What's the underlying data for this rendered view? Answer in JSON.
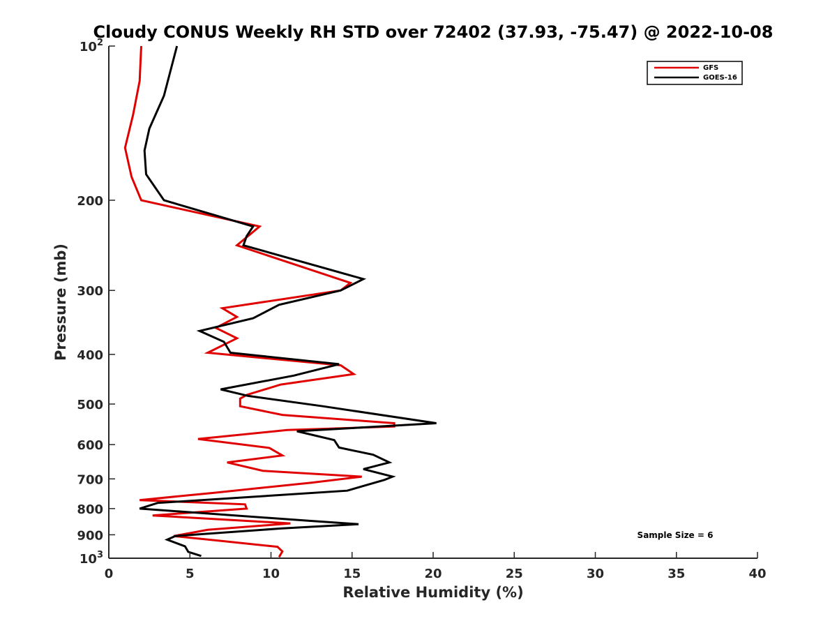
{
  "chart_data": {
    "type": "line",
    "title": "Cloudy CONUS Weekly RH STD over 72402 (37.93, -75.47) @ 2022-10-08",
    "xlabel": "Relative Humidity (%)",
    "ylabel": "Pressure (mb)",
    "xlim": [
      0,
      40
    ],
    "ylim": [
      100,
      1000
    ],
    "y_scale": "log",
    "y_reversed": true,
    "x_ticks": [
      0,
      5,
      10,
      15,
      20,
      25,
      30,
      35,
      40
    ],
    "y_ticks": [
      {
        "value": 100,
        "label": "10",
        "exp": "2"
      },
      {
        "value": 200,
        "label": "200"
      },
      {
        "value": 300,
        "label": "300"
      },
      {
        "value": 400,
        "label": "400"
      },
      {
        "value": 500,
        "label": "500"
      },
      {
        "value": 600,
        "label": "600"
      },
      {
        "value": 700,
        "label": "700"
      },
      {
        "value": 800,
        "label": "800"
      },
      {
        "value": 900,
        "label": "900"
      },
      {
        "value": 1000,
        "label": "10",
        "exp": "3"
      }
    ],
    "grid": false,
    "legend_position": "top-right",
    "series": [
      {
        "name": "GFS",
        "color": "#e00000",
        "points": [
          [
            2.0,
            100
          ],
          [
            1.9,
            117
          ],
          [
            1.5,
            136
          ],
          [
            1.0,
            158
          ],
          [
            1.4,
            180
          ],
          [
            2.0,
            200
          ],
          [
            9.3,
            225
          ],
          [
            7.9,
            245
          ],
          [
            14.9,
            290
          ],
          [
            14.3,
            300
          ],
          [
            7.0,
            325
          ],
          [
            7.9,
            338
          ],
          [
            6.6,
            355
          ],
          [
            7.9,
            372
          ],
          [
            6.1,
            397
          ],
          [
            14.3,
            420
          ],
          [
            15.1,
            437
          ],
          [
            10.6,
            458
          ],
          [
            8.5,
            480
          ],
          [
            8.1,
            488
          ],
          [
            8.1,
            505
          ],
          [
            10.7,
            525
          ],
          [
            17.6,
            545
          ],
          [
            17.6,
            553
          ],
          [
            11.0,
            562
          ],
          [
            5.5,
            585
          ],
          [
            9.9,
            609
          ],
          [
            10.7,
            630
          ],
          [
            7.3,
            650
          ],
          [
            9.5,
            675
          ],
          [
            15.6,
            693
          ],
          [
            12.5,
            712
          ],
          [
            6.5,
            745
          ],
          [
            1.9,
            770
          ],
          [
            8.4,
            785
          ],
          [
            8.5,
            800
          ],
          [
            2.7,
            825
          ],
          [
            11.2,
            855
          ],
          [
            6.1,
            880
          ],
          [
            4.0,
            905
          ],
          [
            6.9,
            925
          ],
          [
            10.4,
            950
          ],
          [
            10.7,
            970
          ],
          [
            10.5,
            995
          ]
        ]
      },
      {
        "name": "GOES-16",
        "color": "#000000",
        "points": [
          [
            4.2,
            100
          ],
          [
            3.4,
            125
          ],
          [
            2.5,
            145
          ],
          [
            2.2,
            160
          ],
          [
            2.3,
            178
          ],
          [
            3.4,
            200
          ],
          [
            8.9,
            225
          ],
          [
            8.5,
            235
          ],
          [
            8.3,
            245
          ],
          [
            15.7,
            285
          ],
          [
            14.3,
            300
          ],
          [
            10.5,
            320
          ],
          [
            8.9,
            340
          ],
          [
            5.6,
            360
          ],
          [
            7.1,
            378
          ],
          [
            7.5,
            397
          ],
          [
            14.2,
            418
          ],
          [
            11.4,
            440
          ],
          [
            6.9,
            468
          ],
          [
            8.6,
            482
          ],
          [
            13.2,
            505
          ],
          [
            20.2,
            545
          ],
          [
            11.6,
            565
          ],
          [
            13.9,
            588
          ],
          [
            14.2,
            608
          ],
          [
            16.3,
            628
          ],
          [
            17.3,
            650
          ],
          [
            15.7,
            670
          ],
          [
            17.5,
            693
          ],
          [
            17.0,
            703
          ],
          [
            14.7,
            738
          ],
          [
            3.0,
            780
          ],
          [
            1.9,
            800
          ],
          [
            12.3,
            845
          ],
          [
            15.4,
            858
          ],
          [
            10.6,
            875
          ],
          [
            4.1,
            905
          ],
          [
            3.6,
            920
          ],
          [
            4.7,
            948
          ],
          [
            4.9,
            972
          ],
          [
            5.7,
            990
          ]
        ]
      }
    ],
    "annotations": [
      {
        "text": "Sample Size = 6"
      }
    ]
  }
}
